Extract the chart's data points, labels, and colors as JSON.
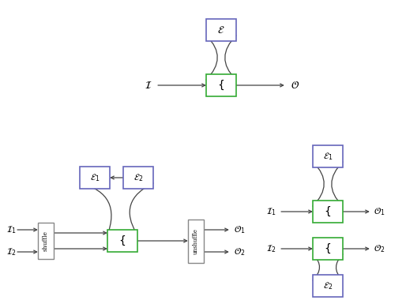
{
  "blue_color": "#6666bb",
  "green_color": "#33aa33",
  "gray_color": "#888888",
  "arrow_color": "#444444",
  "bg_color": "#ffffff",
  "fig_w": 5.14,
  "fig_h": 3.85,
  "dpi": 100
}
